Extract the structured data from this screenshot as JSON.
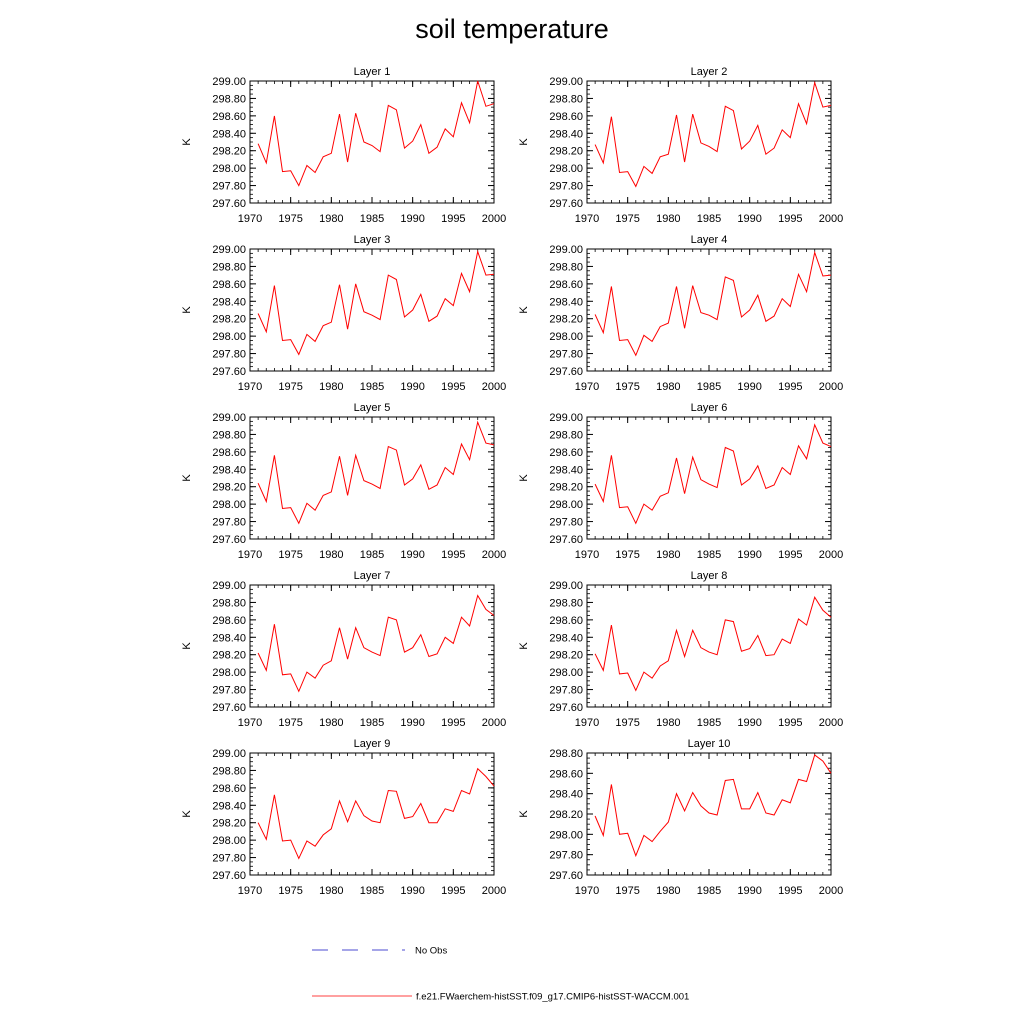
{
  "title": "soil temperature",
  "colors": {
    "model": "#ff0000",
    "obs": "#4b4bd1",
    "axis": "#000000"
  },
  "legend": {
    "obs_label": "No Obs",
    "model_label": "f.e21.FWaerchem-histSST.f09_g17.CMIP6-histSST-WACCM.001"
  },
  "chart_data": [
    {
      "type": "line",
      "title": "Layer 1",
      "xlabel": "",
      "ylabel": "K",
      "xlim": [
        1970,
        2000
      ],
      "ylim": [
        297.6,
        299.0
      ],
      "xticks": [
        1970,
        1975,
        1980,
        1985,
        1990,
        1995,
        2000
      ],
      "yticks": [
        "297.60",
        "297.80",
        "298.00",
        "298.20",
        "298.40",
        "298.60",
        "298.80",
        "299.00"
      ],
      "x": [
        1971,
        1972,
        1973,
        1974,
        1975,
        1976,
        1977,
        1978,
        1979,
        1980,
        1981,
        1982,
        1983,
        1984,
        1985,
        1986,
        1987,
        1988,
        1989,
        1990,
        1991,
        1992,
        1993,
        1994,
        1995,
        1996,
        1997,
        1998,
        1999,
        2000
      ],
      "y": [
        298.28,
        298.06,
        298.6,
        297.96,
        297.97,
        297.8,
        298.03,
        297.95,
        298.13,
        298.17,
        298.62,
        298.07,
        298.63,
        298.3,
        298.26,
        298.19,
        298.72,
        298.67,
        298.23,
        298.31,
        298.5,
        298.17,
        298.24,
        298.45,
        298.36,
        298.75,
        298.52,
        299.0,
        298.71,
        298.74
      ]
    },
    {
      "type": "line",
      "title": "Layer 2",
      "xlabel": "",
      "ylabel": "K",
      "xlim": [
        1970,
        2000
      ],
      "ylim": [
        297.6,
        299.0
      ],
      "xticks": [
        1970,
        1975,
        1980,
        1985,
        1990,
        1995,
        2000
      ],
      "yticks": [
        "297.60",
        "297.80",
        "298.00",
        "298.20",
        "298.40",
        "298.60",
        "298.80",
        "299.00"
      ],
      "x": [
        1971,
        1972,
        1973,
        1974,
        1975,
        1976,
        1977,
        1978,
        1979,
        1980,
        1981,
        1982,
        1983,
        1984,
        1985,
        1986,
        1987,
        1988,
        1989,
        1990,
        1991,
        1992,
        1993,
        1994,
        1995,
        1996,
        1997,
        1998,
        1999,
        2000
      ],
      "y": [
        298.27,
        298.06,
        298.59,
        297.95,
        297.96,
        297.79,
        298.02,
        297.94,
        298.13,
        298.16,
        298.61,
        298.07,
        298.62,
        298.29,
        298.25,
        298.19,
        298.71,
        298.66,
        298.22,
        298.31,
        298.49,
        298.16,
        298.23,
        298.44,
        298.35,
        298.74,
        298.51,
        298.98,
        298.7,
        298.72
      ]
    },
    {
      "type": "line",
      "title": "Layer 3",
      "xlabel": "",
      "ylabel": "K",
      "xlim": [
        1970,
        2000
      ],
      "ylim": [
        297.6,
        299.0
      ],
      "xticks": [
        1970,
        1975,
        1980,
        1985,
        1990,
        1995,
        2000
      ],
      "yticks": [
        "297.60",
        "297.80",
        "298.00",
        "298.20",
        "298.40",
        "298.60",
        "298.80",
        "299.00"
      ],
      "x": [
        1971,
        1972,
        1973,
        1974,
        1975,
        1976,
        1977,
        1978,
        1979,
        1980,
        1981,
        1982,
        1983,
        1984,
        1985,
        1986,
        1987,
        1988,
        1989,
        1990,
        1991,
        1992,
        1993,
        1994,
        1995,
        1996,
        1997,
        1998,
        1999,
        2000
      ],
      "y": [
        298.26,
        298.05,
        298.58,
        297.95,
        297.96,
        297.79,
        298.02,
        297.94,
        298.12,
        298.16,
        298.59,
        298.08,
        298.6,
        298.28,
        298.24,
        298.19,
        298.7,
        298.65,
        298.22,
        298.3,
        298.48,
        298.17,
        298.23,
        298.43,
        298.35,
        298.72,
        298.51,
        298.97,
        298.7,
        298.71
      ]
    },
    {
      "type": "line",
      "title": "Layer 4",
      "xlabel": "",
      "ylabel": "K",
      "xlim": [
        1970,
        2000
      ],
      "ylim": [
        297.6,
        299.0
      ],
      "xticks": [
        1970,
        1975,
        1980,
        1985,
        1990,
        1995,
        2000
      ],
      "yticks": [
        "297.60",
        "297.80",
        "298.00",
        "298.20",
        "298.40",
        "298.60",
        "298.80",
        "299.00"
      ],
      "x": [
        1971,
        1972,
        1973,
        1974,
        1975,
        1976,
        1977,
        1978,
        1979,
        1980,
        1981,
        1982,
        1983,
        1984,
        1985,
        1986,
        1987,
        1988,
        1989,
        1990,
        1991,
        1992,
        1993,
        1994,
        1995,
        1996,
        1997,
        1998,
        1999,
        2000
      ],
      "y": [
        298.25,
        298.04,
        298.57,
        297.95,
        297.96,
        297.78,
        298.01,
        297.94,
        298.11,
        298.15,
        298.57,
        298.09,
        298.58,
        298.27,
        298.24,
        298.19,
        298.68,
        298.64,
        298.22,
        298.3,
        298.47,
        298.17,
        298.23,
        298.43,
        298.34,
        298.71,
        298.51,
        298.96,
        298.69,
        298.7
      ]
    },
    {
      "type": "line",
      "title": "Layer 5",
      "xlabel": "",
      "ylabel": "K",
      "xlim": [
        1970,
        2000
      ],
      "ylim": [
        297.6,
        299.0
      ],
      "xticks": [
        1970,
        1975,
        1980,
        1985,
        1990,
        1995,
        2000
      ],
      "yticks": [
        "297.60",
        "297.80",
        "298.00",
        "298.20",
        "298.40",
        "298.60",
        "298.80",
        "299.00"
      ],
      "x": [
        1971,
        1972,
        1973,
        1974,
        1975,
        1976,
        1977,
        1978,
        1979,
        1980,
        1981,
        1982,
        1983,
        1984,
        1985,
        1986,
        1987,
        1988,
        1989,
        1990,
        1991,
        1992,
        1993,
        1994,
        1995,
        1996,
        1997,
        1998,
        1999,
        2000
      ],
      "y": [
        298.24,
        298.03,
        298.56,
        297.95,
        297.96,
        297.78,
        298.01,
        297.93,
        298.1,
        298.14,
        298.55,
        298.1,
        298.56,
        298.27,
        298.23,
        298.18,
        298.66,
        298.62,
        298.22,
        298.29,
        298.45,
        298.17,
        298.22,
        298.42,
        298.34,
        298.69,
        298.51,
        298.94,
        298.7,
        298.68
      ]
    },
    {
      "type": "line",
      "title": "Layer 6",
      "xlabel": "",
      "ylabel": "K",
      "xlim": [
        1970,
        2000
      ],
      "ylim": [
        297.6,
        299.0
      ],
      "xticks": [
        1970,
        1975,
        1980,
        1985,
        1990,
        1995,
        2000
      ],
      "yticks": [
        "297.60",
        "297.80",
        "298.00",
        "298.20",
        "298.40",
        "298.60",
        "298.80",
        "299.00"
      ],
      "x": [
        1971,
        1972,
        1973,
        1974,
        1975,
        1976,
        1977,
        1978,
        1979,
        1980,
        1981,
        1982,
        1983,
        1984,
        1985,
        1986,
        1987,
        1988,
        1989,
        1990,
        1991,
        1992,
        1993,
        1994,
        1995,
        1996,
        1997,
        1998,
        1999,
        2000
      ],
      "y": [
        298.23,
        298.03,
        298.56,
        297.96,
        297.97,
        297.78,
        298.0,
        297.93,
        298.09,
        298.13,
        298.53,
        298.12,
        298.54,
        298.28,
        298.23,
        298.19,
        298.65,
        298.61,
        298.22,
        298.29,
        298.44,
        298.18,
        298.22,
        298.42,
        298.34,
        298.67,
        298.52,
        298.91,
        298.7,
        298.66
      ]
    },
    {
      "type": "line",
      "title": "Layer 7",
      "xlabel": "",
      "ylabel": "K",
      "xlim": [
        1970,
        2000
      ],
      "ylim": [
        297.6,
        299.0
      ],
      "xticks": [
        1970,
        1975,
        1980,
        1985,
        1990,
        1995,
        2000
      ],
      "yticks": [
        "297.60",
        "297.80",
        "298.00",
        "298.20",
        "298.40",
        "298.60",
        "298.80",
        "299.00"
      ],
      "x": [
        1971,
        1972,
        1973,
        1974,
        1975,
        1976,
        1977,
        1978,
        1979,
        1980,
        1981,
        1982,
        1983,
        1984,
        1985,
        1986,
        1987,
        1988,
        1989,
        1990,
        1991,
        1992,
        1993,
        1994,
        1995,
        1996,
        1997,
        1998,
        1999,
        2000
      ],
      "y": [
        298.22,
        298.02,
        298.55,
        297.97,
        297.98,
        297.78,
        298.0,
        297.93,
        298.08,
        298.13,
        298.51,
        298.15,
        298.51,
        298.28,
        298.23,
        298.19,
        298.63,
        298.6,
        298.23,
        298.28,
        298.43,
        298.18,
        298.21,
        298.4,
        298.33,
        298.63,
        298.53,
        298.88,
        298.72,
        298.65
      ]
    },
    {
      "type": "line",
      "title": "Layer 8",
      "xlabel": "",
      "ylabel": "K",
      "xlim": [
        1970,
        2000
      ],
      "ylim": [
        297.6,
        299.0
      ],
      "xticks": [
        1970,
        1975,
        1980,
        1985,
        1990,
        1995,
        2000
      ],
      "yticks": [
        "297.60",
        "297.80",
        "298.00",
        "298.20",
        "298.40",
        "298.60",
        "298.80",
        "299.00"
      ],
      "x": [
        1971,
        1972,
        1973,
        1974,
        1975,
        1976,
        1977,
        1978,
        1979,
        1980,
        1981,
        1982,
        1983,
        1984,
        1985,
        1986,
        1987,
        1988,
        1989,
        1990,
        1991,
        1992,
        1993,
        1994,
        1995,
        1996,
        1997,
        1998,
        1999,
        2000
      ],
      "y": [
        298.21,
        298.02,
        298.54,
        297.98,
        297.99,
        297.79,
        298.0,
        297.93,
        298.07,
        298.13,
        298.48,
        298.18,
        298.48,
        298.28,
        298.23,
        298.2,
        298.6,
        298.58,
        298.24,
        298.27,
        298.42,
        298.19,
        298.2,
        298.38,
        298.33,
        298.61,
        298.54,
        298.86,
        298.71,
        298.63
      ]
    },
    {
      "type": "line",
      "title": "Layer 9",
      "xlabel": "",
      "ylabel": "K",
      "xlim": [
        1970,
        2000
      ],
      "ylim": [
        297.6,
        299.0
      ],
      "xticks": [
        1970,
        1975,
        1980,
        1985,
        1990,
        1995,
        2000
      ],
      "yticks": [
        "297.60",
        "297.80",
        "298.00",
        "298.20",
        "298.40",
        "298.60",
        "298.80",
        "299.00"
      ],
      "x": [
        1971,
        1972,
        1973,
        1974,
        1975,
        1976,
        1977,
        1978,
        1979,
        1980,
        1981,
        1982,
        1983,
        1984,
        1985,
        1986,
        1987,
        1988,
        1989,
        1990,
        1991,
        1992,
        1993,
        1994,
        1995,
        1996,
        1997,
        1998,
        1999,
        2000
      ],
      "y": [
        298.2,
        298.01,
        298.52,
        297.99,
        298.0,
        297.79,
        297.99,
        297.93,
        298.06,
        298.13,
        298.45,
        298.21,
        298.45,
        298.28,
        298.22,
        298.2,
        298.57,
        298.56,
        298.25,
        298.27,
        298.42,
        298.2,
        298.2,
        298.36,
        298.33,
        298.57,
        298.53,
        298.82,
        298.73,
        298.62
      ]
    },
    {
      "type": "line",
      "title": "Layer 10",
      "xlabel": "",
      "ylabel": "K",
      "xlim": [
        1970,
        2000
      ],
      "ylim": [
        297.6,
        298.8
      ],
      "xticks": [
        1970,
        1975,
        1980,
        1985,
        1990,
        1995,
        2000
      ],
      "yticks": [
        "297.60",
        "297.80",
        "298.00",
        "298.20",
        "298.40",
        "298.60",
        "298.80"
      ],
      "x": [
        1971,
        1972,
        1973,
        1974,
        1975,
        1976,
        1977,
        1978,
        1979,
        1980,
        1981,
        1982,
        1983,
        1984,
        1985,
        1986,
        1987,
        1988,
        1989,
        1990,
        1991,
        1992,
        1993,
        1994,
        1995,
        1996,
        1997,
        1998,
        1999,
        2000
      ],
      "y": [
        298.18,
        297.99,
        298.49,
        298.0,
        298.01,
        297.79,
        297.99,
        297.93,
        298.03,
        298.12,
        298.4,
        298.23,
        298.41,
        298.28,
        298.21,
        298.19,
        298.53,
        298.54,
        298.25,
        298.25,
        298.41,
        298.21,
        298.19,
        298.34,
        298.31,
        298.54,
        298.52,
        298.78,
        298.72,
        298.6
      ]
    }
  ]
}
